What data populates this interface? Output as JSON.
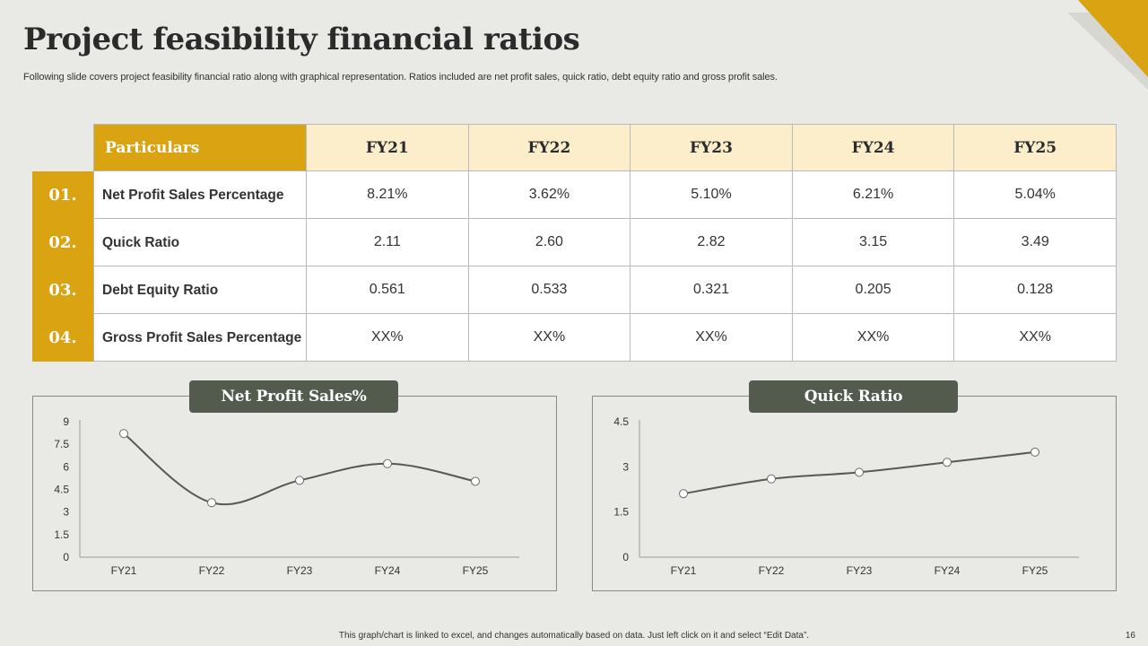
{
  "title": "Project feasibility financial ratios",
  "subtitle": "Following slide covers project feasibility financial ratio along with graphical representation. Ratios included are net profit sales, quick ratio, debt equity ratio and gross profit sales.",
  "colors": {
    "accent": "#d9a312",
    "header_fill": "#fcedcb",
    "dark_green": "#525b4e",
    "background": "#e9eae5"
  },
  "table": {
    "header": {
      "particulars": "Particulars",
      "years": [
        "FY21",
        "FY22",
        "FY23",
        "FY24",
        "FY25"
      ]
    },
    "rows": [
      {
        "num": "01.",
        "label": "Net Profit Sales Percentage",
        "values": [
          "8.21%",
          "3.62%",
          "5.10%",
          "6.21%",
          "5.04%"
        ]
      },
      {
        "num": "02.",
        "label": "Quick Ratio",
        "values": [
          "2.11",
          "2.60",
          "2.82",
          "3.15",
          "3.49"
        ]
      },
      {
        "num": "03.",
        "label": "Debt Equity Ratio",
        "values": [
          "0.561",
          "0.533",
          "0.321",
          "0.205",
          "0.128"
        ]
      },
      {
        "num": "04.",
        "label": "Gross Profit Sales Percentage",
        "values": [
          "XX%",
          "XX%",
          "XX%",
          "XX%",
          "XX%"
        ]
      }
    ]
  },
  "chart_data": [
    {
      "type": "line",
      "title": "Net Profit Sales%",
      "categories": [
        "FY21",
        "FY22",
        "FY23",
        "FY24",
        "FY25"
      ],
      "values": [
        8.21,
        3.62,
        5.1,
        6.21,
        5.04
      ],
      "ylim": [
        0,
        9
      ],
      "yticks": [
        "0",
        "1.5",
        "3",
        "4.5",
        "6",
        "7.5",
        "9"
      ],
      "xlabel": "",
      "ylabel": "",
      "grid": false
    },
    {
      "type": "line",
      "title": "Quick Ratio",
      "categories": [
        "FY21",
        "FY22",
        "FY23",
        "FY24",
        "FY25"
      ],
      "values": [
        2.11,
        2.6,
        2.82,
        3.15,
        3.49
      ],
      "ylim": [
        0,
        4.5
      ],
      "yticks": [
        "0",
        "1.5",
        "3",
        "4.5"
      ],
      "xlabel": "",
      "ylabel": "",
      "grid": false
    }
  ],
  "footer": "This graph/chart is linked to excel, and changes automatically based on data. Just left click on it and select “Edit Data”.",
  "page_number": "16"
}
